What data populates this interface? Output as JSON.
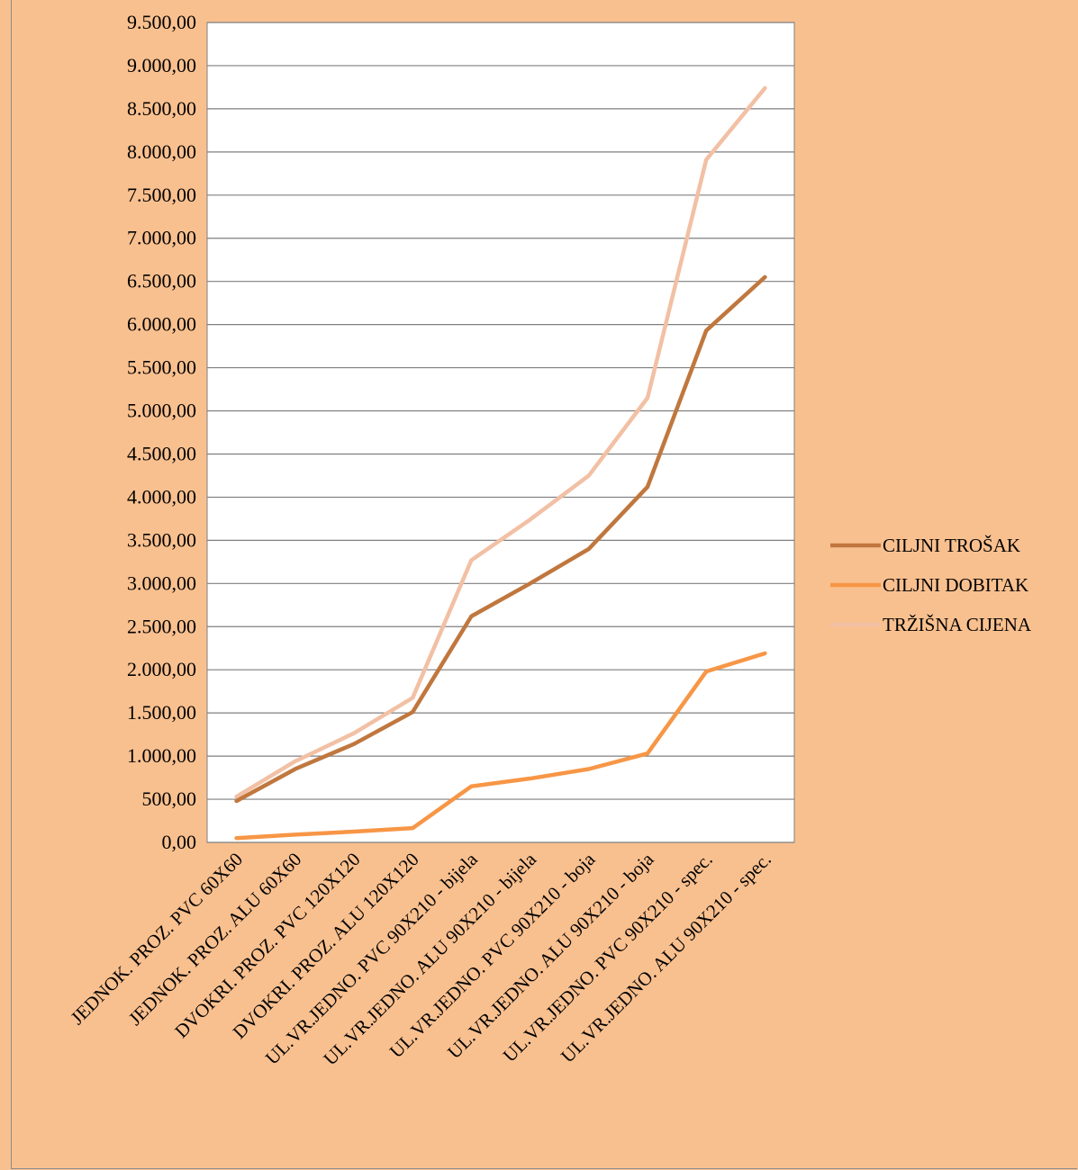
{
  "chart_data": {
    "type": "line",
    "title": "",
    "xlabel": "",
    "ylabel": "",
    "ylim": [
      0,
      9500
    ],
    "y_tick_step": 500,
    "y_ticks": [
      "0,00",
      "500,00",
      "1.000,00",
      "1.500,00",
      "2.000,00",
      "2.500,00",
      "3.000,00",
      "3.500,00",
      "4.000,00",
      "4.500,00",
      "5.000,00",
      "5.500,00",
      "6.000,00",
      "6.500,00",
      "7.000,00",
      "7.500,00",
      "8.000,00",
      "8.500,00",
      "9.000,00",
      "9.500,00"
    ],
    "grid": true,
    "legend_position": "right",
    "categories": [
      "JEDNOK. PROZ. PVC 60X60",
      "JEDNOK. PROZ. ALU 60X60",
      "DVOKRI. PROZ. PVC 120X120",
      "DVOKRI. PROZ. ALU 120X120",
      "UL.VR.JEDNO. PVC 90X210 - bijela",
      "UL.VR.JEDNO. ALU 90X210 - bijela",
      "UL.VR.JEDNO. PVC 90X210 - boja",
      "UL.VR.JEDNO. ALU 90X210 - boja",
      "UL.VR.JEDNO. PVC 90X210 - spec.",
      "UL.VR.JEDNO. ALU 90X210 - spec."
    ],
    "series": [
      {
        "name": "CILJNI TROŠAK",
        "color": "#c0773e",
        "values": [
          480,
          850,
          1140,
          1510,
          2620,
          3000,
          3400,
          4120,
          5930,
          6550
        ]
      },
      {
        "name": "CILJNI DOBITAK",
        "color": "#f79646",
        "values": [
          50,
          90,
          125,
          165,
          650,
          740,
          850,
          1030,
          1980,
          2190
        ]
      },
      {
        "name": "TRŽIŠNA CIJENA",
        "color": "#f2c0a4",
        "values": [
          530,
          940,
          1265,
          1675,
          3270,
          3740,
          4250,
          5150,
          7910,
          8740
        ]
      }
    ]
  }
}
